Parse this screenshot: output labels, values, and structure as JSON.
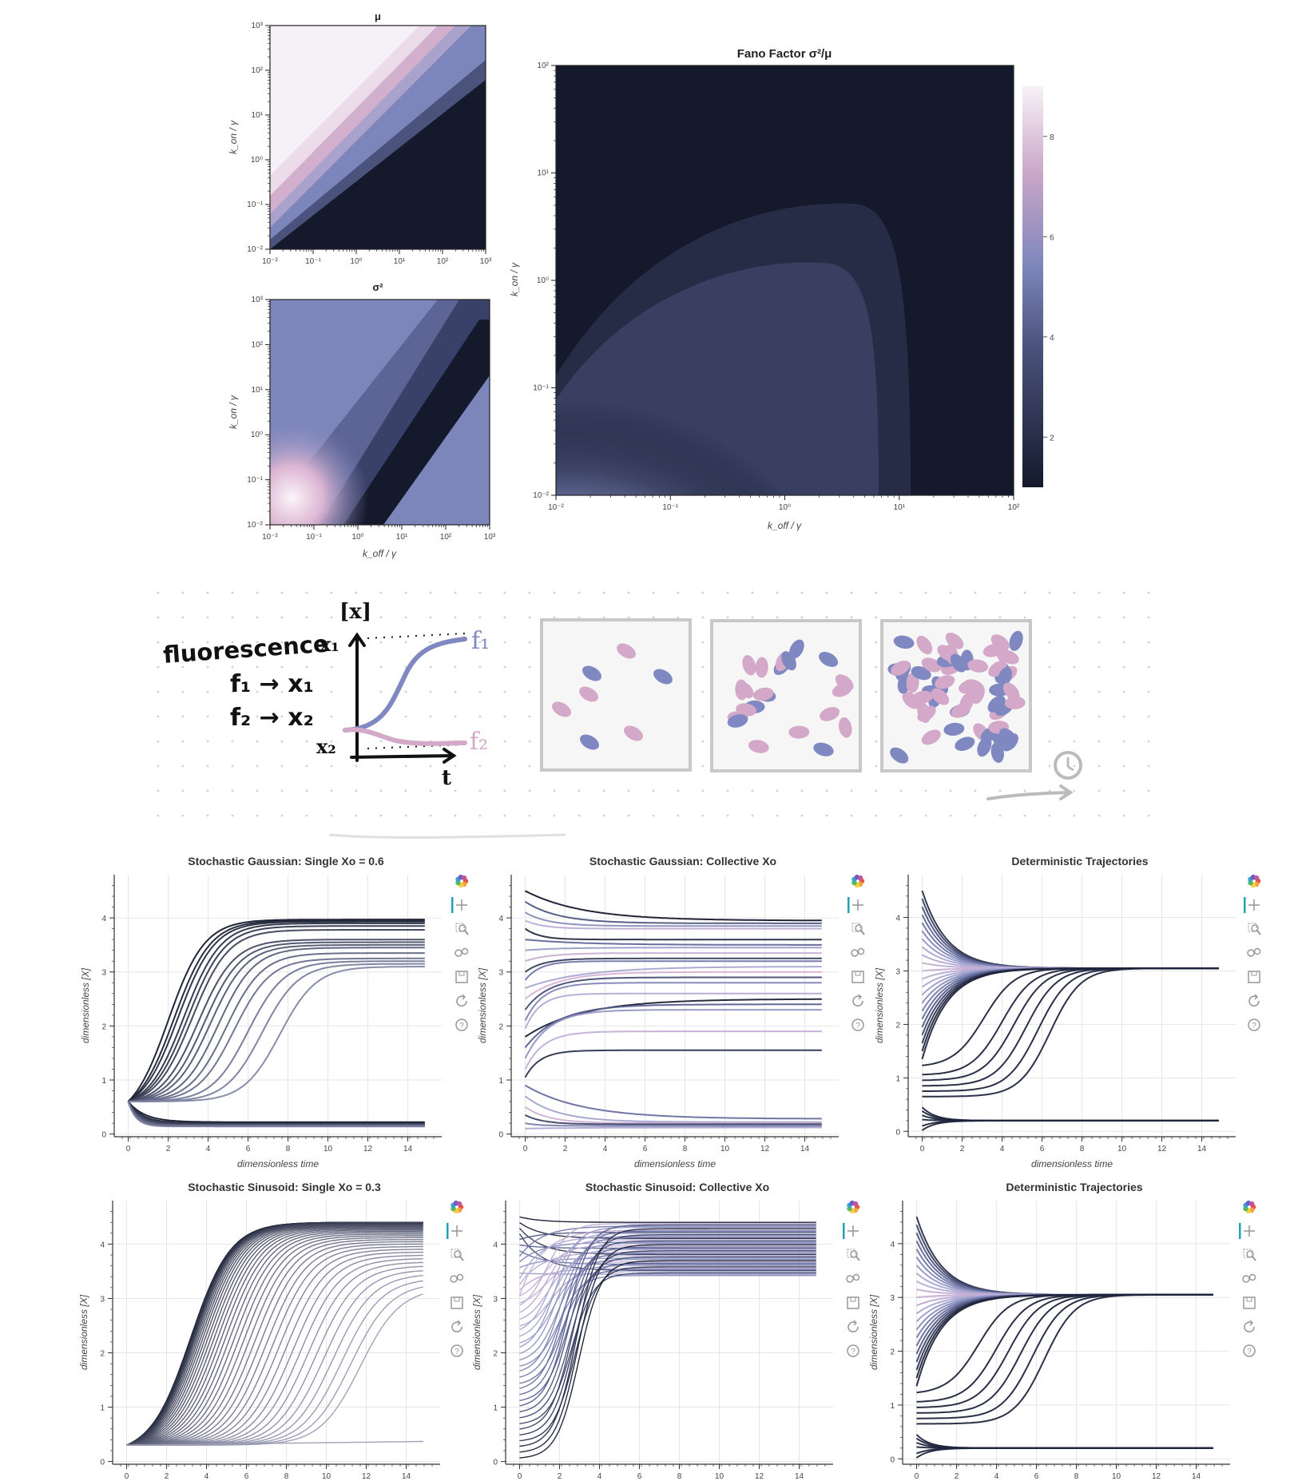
{
  "colors": {
    "dark": "#141a2c",
    "blue": "#7d86bb",
    "pink": "#d9b1cf",
    "light": "#f4eff5",
    "grid": "#e6e6e6",
    "sketch_blue": "#8088c2",
    "sketch_pink": "#d4a8c8",
    "toolbar_accent": "#26a0b8"
  },
  "heatmaps": {
    "mu": {
      "title": "μ",
      "ylabel": "k_on / γ",
      "xlabel": "",
      "xticks": [
        "10⁻²",
        "10⁻¹",
        "10⁰",
        "10¹",
        "10²",
        "10³"
      ],
      "yticks": [
        "10³",
        "10²",
        "10¹",
        "10⁰",
        "10⁻¹",
        "10⁻²"
      ]
    },
    "sigma": {
      "title": "σ²",
      "ylabel": "k_on / γ",
      "xlabel": "k_off / γ",
      "xticks": [
        "10⁻²",
        "10⁻¹",
        "10⁰",
        "10¹",
        "10²",
        "10³"
      ],
      "yticks": [
        "10³",
        "10²",
        "10¹",
        "10⁰",
        "10⁻¹",
        "10⁻²"
      ]
    },
    "fano": {
      "title": "Fano Factor σ²/μ",
      "ylabel": "k_on / γ",
      "xlabel": "k_off / γ",
      "xticks": [
        "10⁻²",
        "10⁻¹",
        "10⁰",
        "10¹",
        "10²"
      ],
      "yticks": [
        "10²",
        "10¹",
        "10⁰",
        "10⁻¹",
        "10⁻²"
      ],
      "colorbar_ticks": [
        "8",
        "6",
        "4",
        "2"
      ]
    }
  },
  "sketch": {
    "words": [
      "fluorescence",
      "f₁ → x₁",
      "f₂ → x₂"
    ],
    "graph_labels": {
      "y_axis": "[x]",
      "x1": "x₁",
      "x2": "x₂",
      "t": "t",
      "f1": "f₁",
      "f2": "f₂"
    }
  },
  "chart_data": [
    {
      "type": "line",
      "title": "Stochastic Gaussian: Single Xo = 0.6",
      "xlabel": "dimensionless time",
      "ylabel": "dimensionless [X]",
      "xlim": [
        -0.7,
        15.7
      ],
      "ylim": [
        -0.05,
        4.8
      ],
      "xticks": [
        0,
        2,
        4,
        6,
        8,
        10,
        12,
        14
      ],
      "yticks": [
        0,
        1,
        2,
        3,
        4
      ],
      "x0": 0.6,
      "upper_finals": [
        3.97,
        3.95,
        3.93,
        3.9,
        3.85,
        3.78,
        3.6,
        3.55,
        3.5,
        3.45,
        3.35,
        3.25,
        3.2,
        3.15,
        3.1
      ],
      "upper_mids": [
        2.0,
        2.3,
        2.5,
        2.8,
        3.0,
        3.2,
        3.5,
        3.8,
        4.1,
        4.5,
        4.9,
        5.3,
        6.0,
        6.7,
        7.6
      ],
      "lower_finals": [
        0.22,
        0.2,
        0.19,
        0.18,
        0.17,
        0.16,
        0.15,
        0.14
      ]
    },
    {
      "type": "line",
      "title": "Stochastic Gaussian: Collective Xo",
      "xlabel": "dimensionless time",
      "ylabel": "dimensionless [X]",
      "xlim": [
        -0.7,
        15.7
      ],
      "ylim": [
        -0.05,
        4.8
      ],
      "xticks": [
        0,
        2,
        4,
        6,
        8,
        10,
        12,
        14
      ],
      "yticks": [
        0,
        1,
        2,
        3,
        4
      ],
      "starts": [
        4.5,
        4.3,
        4.1,
        3.95,
        3.8,
        3.6,
        3.4,
        3.2,
        3.0,
        2.85,
        2.7,
        2.5,
        2.3,
        2.1,
        1.95,
        1.8,
        1.6,
        1.4,
        1.2,
        1.05,
        0.9,
        0.7,
        0.5,
        0.35,
        0.2,
        0.1
      ],
      "finals": [
        3.95,
        3.9,
        3.85,
        3.8,
        3.6,
        3.5,
        3.45,
        3.35,
        3.25,
        3.2,
        3.1,
        3.0,
        2.9,
        2.8,
        2.6,
        2.5,
        2.4,
        2.3,
        1.9,
        1.55,
        0.28,
        0.22,
        0.2,
        0.18,
        0.15,
        0.12
      ]
    },
    {
      "type": "line",
      "title": "Deterministic Trajectories",
      "xlabel": "dimensionless time",
      "ylabel": "dimensionless [X]",
      "xlim": [
        -0.7,
        15.7
      ],
      "ylim": [
        -0.1,
        4.8
      ],
      "xticks": [
        0,
        2,
        4,
        6,
        8,
        10,
        12,
        14
      ],
      "yticks": [
        0,
        1,
        2,
        3,
        4
      ],
      "upper_fixed": 3.05,
      "lower_fixed": 0.2,
      "starts": [
        4.5,
        4.35,
        4.2,
        4.05,
        3.9,
        3.75,
        3.6,
        3.45,
        3.3,
        3.15,
        3.0,
        2.85,
        2.7,
        2.55,
        2.4,
        2.25,
        2.1,
        1.95,
        1.8,
        1.65,
        1.5,
        1.35,
        1.2,
        1.05,
        0.95,
        0.85,
        0.75,
        0.65,
        0.45,
        0.38,
        0.3,
        0.22,
        0.1,
        0.02
      ]
    },
    {
      "type": "line",
      "title": "Stochastic Sinusoid: Single Xo = 0.3",
      "xlabel": "dimensionless time",
      "ylabel": "dimensionless [X]",
      "xlim": [
        -0.7,
        15.7
      ],
      "ylim": [
        -0.05,
        4.8
      ],
      "xticks": [
        0,
        2,
        4,
        6,
        8,
        10,
        12,
        14
      ],
      "yticks": [
        0,
        1,
        2,
        3,
        4
      ],
      "x0": 0.3,
      "n_curves": 40,
      "final_max": 4.4,
      "final_min": 3.2
    },
    {
      "type": "line",
      "title": "Stochastic Sinusoid: Collective Xo",
      "xlabel": "dimensionless time",
      "ylabel": "dimensionless [X]",
      "xlim": [
        -0.7,
        15.7
      ],
      "ylim": [
        -0.05,
        4.8
      ],
      "xticks": [
        0,
        2,
        4,
        6,
        8,
        10,
        12,
        14
      ],
      "yticks": [
        0,
        1,
        2,
        3,
        4
      ],
      "n_curves": 44,
      "final_max": 4.4,
      "final_min": 3.4
    },
    {
      "type": "line",
      "title": "Deterministic Trajectories",
      "xlabel": "dimensionless time",
      "ylabel": "dimensionless [X]",
      "xlim": [
        -0.7,
        15.7
      ],
      "ylim": [
        -0.1,
        4.8
      ],
      "xticks": [
        0,
        2,
        4,
        6,
        8,
        10,
        12,
        14
      ],
      "yticks": [
        0,
        1,
        2,
        3,
        4
      ],
      "upper_fixed": 3.05,
      "lower_fixed": 0.2,
      "starts": [
        4.5,
        4.35,
        4.2,
        4.05,
        3.9,
        3.75,
        3.6,
        3.45,
        3.3,
        3.15,
        3.0,
        2.85,
        2.7,
        2.55,
        2.4,
        2.25,
        2.1,
        1.95,
        1.8,
        1.65,
        1.5,
        1.35,
        1.2,
        1.05,
        0.95,
        0.85,
        0.75,
        0.65,
        0.45,
        0.38,
        0.3,
        0.22,
        0.1,
        0.02
      ]
    }
  ],
  "toolbar": {
    "tools": [
      "bokeh-logo-icon",
      "pan-icon",
      "box-zoom-icon",
      "wheel-zoom-icon",
      "save-icon",
      "reset-icon",
      "help-icon"
    ]
  }
}
